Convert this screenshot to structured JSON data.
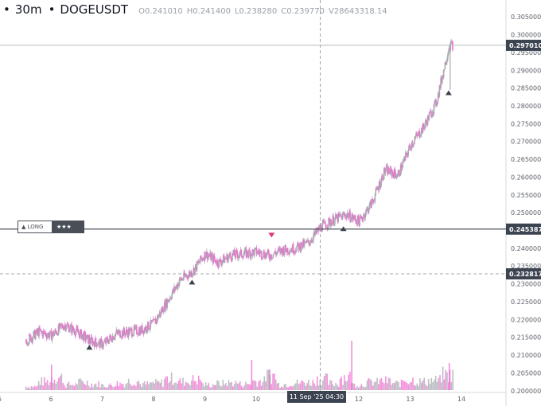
{
  "header": {
    "timeframe": "30m",
    "symbol": "DOGEUSDT",
    "o_key": "O",
    "o_val": "0.241010",
    "h_key": "H",
    "h_val": "0.241400",
    "l_key": "L",
    "l_val": "0.238280",
    "c_key": "C",
    "c_val": "0.239770",
    "v_key": "V",
    "v_val": "28643318.14"
  },
  "colors": {
    "up": "#a7aab0",
    "down": "#f06fd2",
    "grid": "#f0f1f3",
    "axis_text": "#5d616a",
    "dark_label": "#3d4451"
  },
  "long_marker": {
    "label": "LONG",
    "stars": "★★★",
    "price": "0.245387"
  },
  "current_price_label": "0.297010",
  "crosshair_price_label": "0.232817",
  "crosshair_time_label": "11 Sep '25  04:30",
  "chart_data": {
    "type": "candlestick",
    "title": "DOGEUSDT",
    "ylim": [
      0.1995,
      0.3075
    ],
    "y_ticks": [
      "0.305000",
      "0.300000",
      "0.295000",
      "0.290000",
      "0.285000",
      "0.280000",
      "0.275000",
      "0.270000",
      "0.265000",
      "0.260000",
      "0.255000",
      "0.250000",
      "0.245000",
      "0.240000",
      "0.235000",
      "0.230000",
      "0.225000",
      "0.220000",
      "0.215000",
      "0.210000",
      "0.205000",
      "0.200000"
    ],
    "x_ticks": [
      "5",
      "6",
      "7",
      "8",
      "9",
      "10",
      "11",
      "12",
      "13",
      "14"
    ],
    "series": [
      {
        "name": "DOGEUSDT",
        "x": [
          5.5,
          5.75,
          6.0,
          6.25,
          6.5,
          6.75,
          7.0,
          7.25,
          7.5,
          7.75,
          8.0,
          8.25,
          8.5,
          8.75,
          9.0,
          9.25,
          9.5,
          9.75,
          10.0,
          10.25,
          10.5,
          10.75,
          11.0,
          11.25,
          11.5,
          11.75,
          12.0,
          12.25,
          12.5,
          12.75,
          13.0,
          13.25,
          13.5,
          13.75
        ],
        "close": [
          0.214,
          0.2165,
          0.2155,
          0.2185,
          0.2165,
          0.214,
          0.213,
          0.216,
          0.2165,
          0.217,
          0.219,
          0.225,
          0.231,
          0.2335,
          0.2385,
          0.236,
          0.238,
          0.2385,
          0.239,
          0.238,
          0.2395,
          0.24,
          0.2415,
          0.246,
          0.248,
          0.2495,
          0.2475,
          0.253,
          0.262,
          0.2605,
          0.269,
          0.274,
          0.281,
          0.297
        ]
      }
    ],
    "volume_series": [
      6,
      14,
      21,
      9,
      13,
      10,
      8,
      11,
      15,
      10,
      12,
      19,
      14,
      17,
      9,
      11,
      12,
      10,
      15,
      24,
      10,
      12,
      13,
      18,
      11,
      22,
      9,
      13,
      15,
      11,
      17,
      14,
      16,
      25
    ],
    "markers": [
      {
        "type": "sell-signal",
        "x": 10.3,
        "y": 0.2437
      },
      {
        "type": "buy-signal",
        "x": 6.75,
        "y": 0.2122
      },
      {
        "type": "buy-signal",
        "x": 8.75,
        "y": 0.2305
      },
      {
        "type": "buy-signal",
        "x": 11.7,
        "y": 0.2455
      },
      {
        "type": "buy-signal",
        "x": 13.75,
        "y": 0.2837
      }
    ],
    "horizontal_lines": [
      {
        "name": "long-entry",
        "y": 0.245387
      },
      {
        "name": "last-price",
        "y": 0.29701
      },
      {
        "name": "crosshair",
        "y": 0.232817
      }
    ],
    "crosshair_x": 11.25,
    "grid": false
  }
}
